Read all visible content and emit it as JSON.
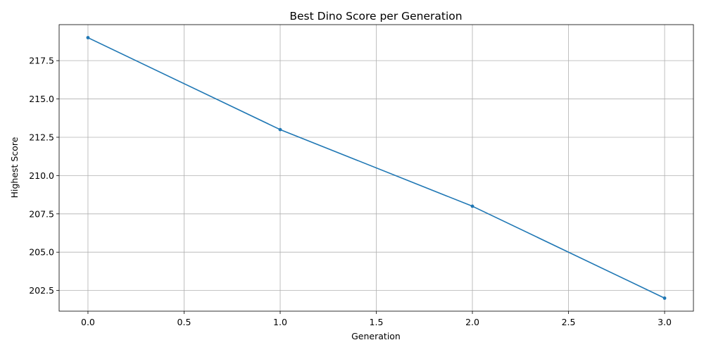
{
  "chart_data": {
    "type": "line",
    "title": "Best Dino Score per Generation",
    "xlabel": "Generation",
    "ylabel": "Highest Score",
    "xlim": [
      -0.15,
      3.15
    ],
    "ylim": [
      201.15,
      219.85
    ],
    "xticks": [
      0.0,
      0.5,
      1.0,
      1.5,
      2.0,
      2.5,
      3.0
    ],
    "xtick_labels": [
      "0.0",
      "0.5",
      "1.0",
      "1.5",
      "2.0",
      "2.5",
      "3.0"
    ],
    "yticks": [
      202.5,
      205.0,
      207.5,
      210.0,
      212.5,
      215.0,
      217.5
    ],
    "ytick_labels": [
      "202.5",
      "205.0",
      "207.5",
      "210.0",
      "212.5",
      "215.0",
      "217.5"
    ],
    "grid": true,
    "series": [
      {
        "x": [
          0,
          1,
          2,
          3
        ],
        "y": [
          219,
          213,
          208,
          202
        ],
        "color": "#1f77b4",
        "marker": "circle"
      }
    ]
  }
}
